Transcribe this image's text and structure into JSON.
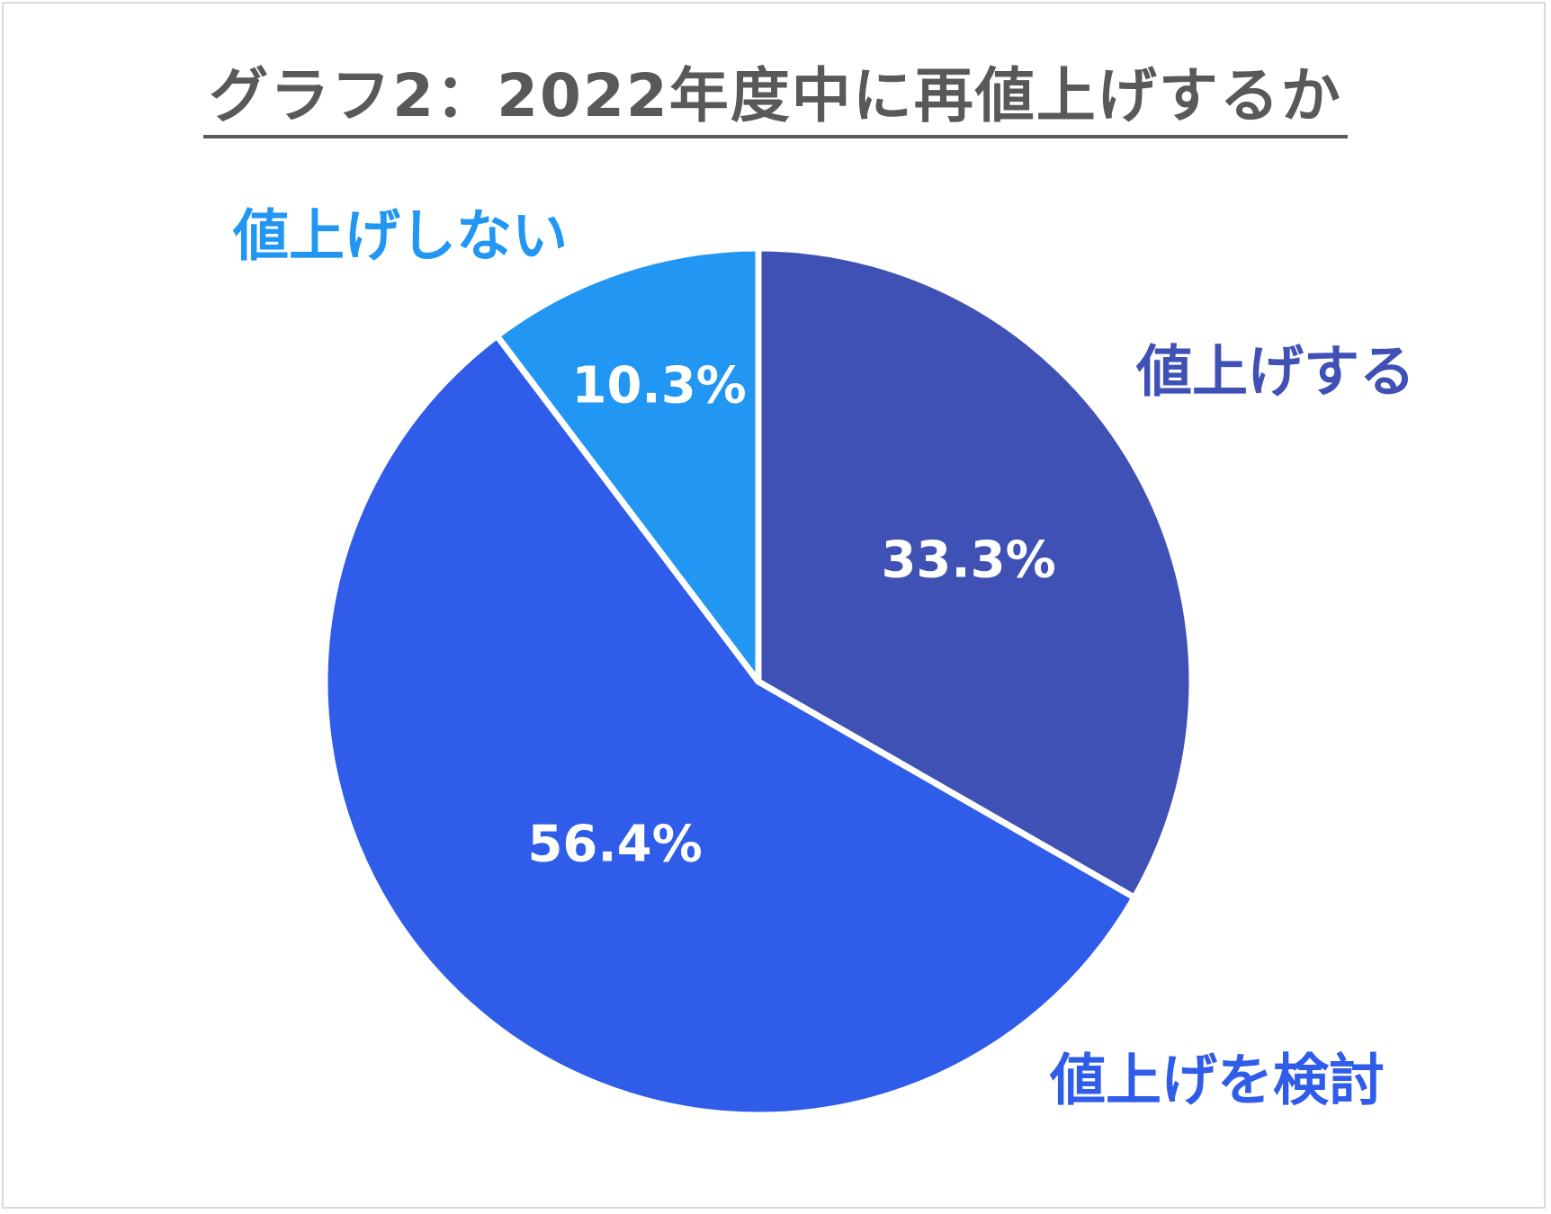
{
  "chart_data": {
    "type": "pie",
    "title": "グラフ2：2022年度中に再値上げするか",
    "slices": [
      {
        "label": "値上げする",
        "value": 33.3,
        "value_label": "33.3%",
        "color": "#3f51b5"
      },
      {
        "label": "値上げを検討",
        "value": 56.4,
        "value_label": "56.4%",
        "color": "#2f5ce8"
      },
      {
        "label": "値上げしない",
        "value": 10.3,
        "value_label": "10.3%",
        "color": "#2196f3"
      }
    ],
    "start_angle": "12 o'clock",
    "direction": "clockwise",
    "legend": "none (labels outside slices)"
  }
}
